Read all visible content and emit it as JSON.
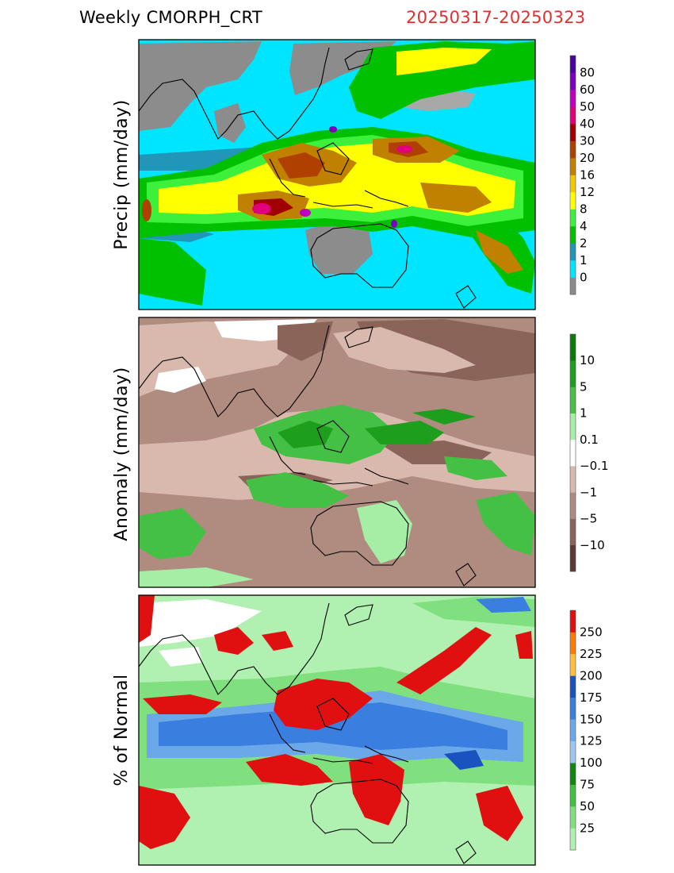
{
  "header": {
    "title": "Weekly CMORPH_CRT",
    "date_range": "20250317-20250323"
  },
  "colors": {
    "header_date": "#e03030",
    "coast": "#000000"
  },
  "chart_data": [
    {
      "type": "heatmap",
      "ylabel": "Precip (mm/day)",
      "colorbar": {
        "labels": [
          "0",
          "1",
          "2",
          "4",
          "8",
          "12",
          "16",
          "20",
          "30",
          "40",
          "50",
          "60",
          "80"
        ],
        "colors": [
          "#8c8c8c",
          "#00e5ff",
          "#2196b8",
          "#00c000",
          "#3cf03c",
          "#ffff00",
          "#f0c800",
          "#c08000",
          "#b04000",
          "#a00000",
          "#e0007a",
          "#c000c0",
          "#7a00c0",
          "#4a00a0"
        ]
      }
    },
    {
      "type": "heatmap",
      "ylabel": "Anomaly (mm/day)",
      "colorbar": {
        "labels": [
          "-10",
          "-5",
          "-1",
          "-0.1",
          "0.1",
          "1",
          "5",
          "10"
        ],
        "colors": [
          "#5a3a32",
          "#8a6458",
          "#b08c80",
          "#d9b8ad",
          "#ffffff",
          "#a6eea6",
          "#44c044",
          "#1d9e1d",
          "#0b7a0b"
        ]
      }
    },
    {
      "type": "heatmap",
      "ylabel": "% of Normal",
      "colorbar": {
        "labels": [
          "25",
          "50",
          "75",
          "100",
          "125",
          "150",
          "175",
          "200",
          "225",
          "250"
        ],
        "colors": [
          "#b0f0b0",
          "#80e080",
          "#40c040",
          "#108810",
          "#9ec8f0",
          "#6aa8ea",
          "#3a7ee0",
          "#1a52c0",
          "#ffc040",
          "#ff7a00",
          "#e01010"
        ]
      }
    }
  ]
}
